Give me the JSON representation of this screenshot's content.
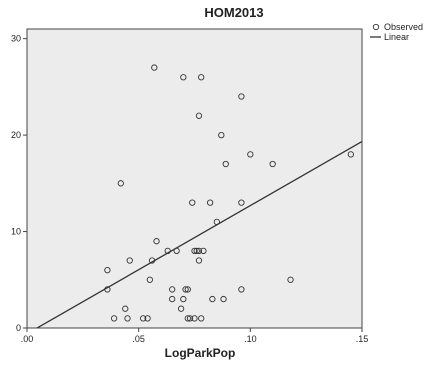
{
  "chart_data": {
    "type": "scatter",
    "title": "HOM2013",
    "xlabel": "LogParkPop",
    "ylabel": "",
    "xlim": [
      0.0,
      0.15
    ],
    "ylim": [
      0,
      31
    ],
    "x_ticks": [
      0.0,
      0.05,
      0.1,
      0.15
    ],
    "x_tick_labels": [
      ".00",
      ".05",
      ".10",
      ".15"
    ],
    "y_ticks": [
      0,
      10,
      20,
      30
    ],
    "y_tick_labels": [
      "0",
      "10",
      "20",
      "30"
    ],
    "grid": false,
    "legend_position": "top-right",
    "background_color": "#ececec",
    "series": [
      {
        "name": "Observed",
        "marker": "open-circle",
        "points": [
          {
            "x": 0.036,
            "y": 6
          },
          {
            "x": 0.036,
            "y": 4
          },
          {
            "x": 0.039,
            "y": 1
          },
          {
            "x": 0.042,
            "y": 15
          },
          {
            "x": 0.044,
            "y": 2
          },
          {
            "x": 0.045,
            "y": 1
          },
          {
            "x": 0.046,
            "y": 7
          },
          {
            "x": 0.052,
            "y": 1
          },
          {
            "x": 0.054,
            "y": 1
          },
          {
            "x": 0.055,
            "y": 5
          },
          {
            "x": 0.056,
            "y": 7
          },
          {
            "x": 0.057,
            "y": 27
          },
          {
            "x": 0.058,
            "y": 9
          },
          {
            "x": 0.063,
            "y": 8
          },
          {
            "x": 0.065,
            "y": 4
          },
          {
            "x": 0.065,
            "y": 3
          },
          {
            "x": 0.067,
            "y": 8
          },
          {
            "x": 0.069,
            "y": 2
          },
          {
            "x": 0.07,
            "y": 26
          },
          {
            "x": 0.07,
            "y": 3
          },
          {
            "x": 0.071,
            "y": 4
          },
          {
            "x": 0.072,
            "y": 4
          },
          {
            "x": 0.072,
            "y": 1
          },
          {
            "x": 0.073,
            "y": 1
          },
          {
            "x": 0.074,
            "y": 13
          },
          {
            "x": 0.075,
            "y": 8
          },
          {
            "x": 0.075,
            "y": 1
          },
          {
            "x": 0.076,
            "y": 8
          },
          {
            "x": 0.077,
            "y": 7
          },
          {
            "x": 0.077,
            "y": 8
          },
          {
            "x": 0.077,
            "y": 22
          },
          {
            "x": 0.078,
            "y": 26
          },
          {
            "x": 0.078,
            "y": 1
          },
          {
            "x": 0.079,
            "y": 8
          },
          {
            "x": 0.082,
            "y": 13
          },
          {
            "x": 0.083,
            "y": 3
          },
          {
            "x": 0.085,
            "y": 11
          },
          {
            "x": 0.087,
            "y": 20
          },
          {
            "x": 0.088,
            "y": 3
          },
          {
            "x": 0.089,
            "y": 17
          },
          {
            "x": 0.096,
            "y": 24
          },
          {
            "x": 0.096,
            "y": 13
          },
          {
            "x": 0.096,
            "y": 4
          },
          {
            "x": 0.1,
            "y": 18
          },
          {
            "x": 0.11,
            "y": 17
          },
          {
            "x": 0.118,
            "y": 5
          },
          {
            "x": 0.145,
            "y": 18
          }
        ]
      },
      {
        "name": "Linear",
        "type": "line",
        "points": [
          {
            "x": 0.0,
            "y": -0.6
          },
          {
            "x": 0.152,
            "y": 19.6
          }
        ]
      }
    ]
  }
}
